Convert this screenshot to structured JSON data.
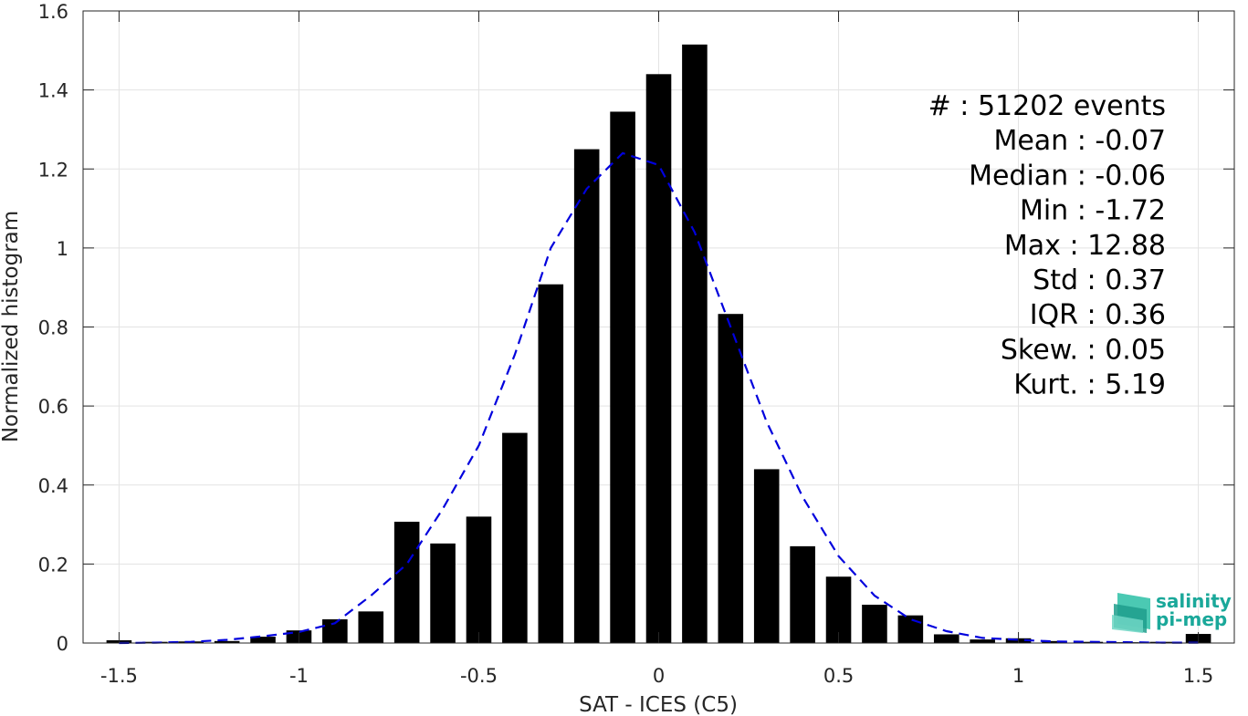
{
  "chart_data": {
    "type": "bar",
    "xlabel": "SAT - ICES (C5)",
    "ylabel": "Normalized histogram",
    "xlim": [
      -1.6,
      1.6
    ],
    "ylim": [
      0,
      1.6
    ],
    "xticks": [
      -1.5,
      -1,
      -0.5,
      0,
      0.5,
      1,
      1.5
    ],
    "xtick_labels": [
      "-1.5",
      "-1",
      "-0.5",
      "0",
      "0.5",
      "1",
      "1.5"
    ],
    "yticks": [
      0,
      0.2,
      0.4,
      0.6,
      0.8,
      1,
      1.2,
      1.4,
      1.6
    ],
    "ytick_labels": [
      "0",
      "0.2",
      "0.4",
      "0.6",
      "0.8",
      "1",
      "1.2",
      "1.4",
      "1.6"
    ],
    "grid": true,
    "bar_color": "#000000",
    "bar_width": 0.07,
    "x": [
      -1.5,
      -1.4,
      -1.3,
      -1.2,
      -1.1,
      -1.0,
      -0.9,
      -0.8,
      -0.7,
      -0.6,
      -0.5,
      -0.4,
      -0.3,
      -0.2,
      -0.1,
      0.0,
      0.1,
      0.2,
      0.3,
      0.4,
      0.5,
      0.6,
      0.7,
      0.8,
      0.9,
      1.0,
      1.1,
      1.2,
      1.3,
      1.4,
      1.5
    ],
    "values": [
      0.007,
      0.003,
      0.004,
      0.005,
      0.016,
      0.032,
      0.06,
      0.08,
      0.307,
      0.252,
      0.32,
      0.532,
      0.908,
      1.25,
      1.345,
      1.44,
      1.515,
      0.833,
      0.44,
      0.245,
      0.168,
      0.097,
      0.07,
      0.022,
      0.009,
      0.012,
      0.005,
      0.003,
      0.002,
      0.003,
      0.023
    ],
    "fit_curve": {
      "color": "#0000dd",
      "style": "dashed",
      "x": [
        -1.5,
        -1.4,
        -1.3,
        -1.2,
        -1.1,
        -1.0,
        -0.9,
        -0.8,
        -0.7,
        -0.6,
        -0.5,
        -0.4,
        -0.3,
        -0.2,
        -0.1,
        0.0,
        0.1,
        0.2,
        0.3,
        0.4,
        0.5,
        0.6,
        0.7,
        0.8,
        0.9,
        1.0,
        1.1,
        1.2,
        1.3,
        1.4,
        1.5
      ],
      "y": [
        0.0,
        0.001,
        0.003,
        0.008,
        0.017,
        0.028,
        0.05,
        0.12,
        0.2,
        0.34,
        0.5,
        0.73,
        1.0,
        1.15,
        1.24,
        1.21,
        1.04,
        0.8,
        0.56,
        0.37,
        0.22,
        0.12,
        0.06,
        0.03,
        0.013,
        0.008,
        0.004,
        0.003,
        0.002,
        0.001,
        0.001
      ]
    },
    "stats": [
      {
        "label": "#  : 51202 events"
      },
      {
        "label": "Mean : -0.07"
      },
      {
        "label": "Median : -0.06"
      },
      {
        "label": "Min : -1.72"
      },
      {
        "label": "Max : 12.88"
      },
      {
        "label": "Std : 0.37"
      },
      {
        "label": "IQR : 0.36"
      },
      {
        "label": "Skew. : 0.05"
      },
      {
        "label": "Kurt. : 5.19"
      }
    ]
  },
  "logo": {
    "line1": "salinity",
    "line2": "pi-mep",
    "color": "#1aa89a"
  }
}
